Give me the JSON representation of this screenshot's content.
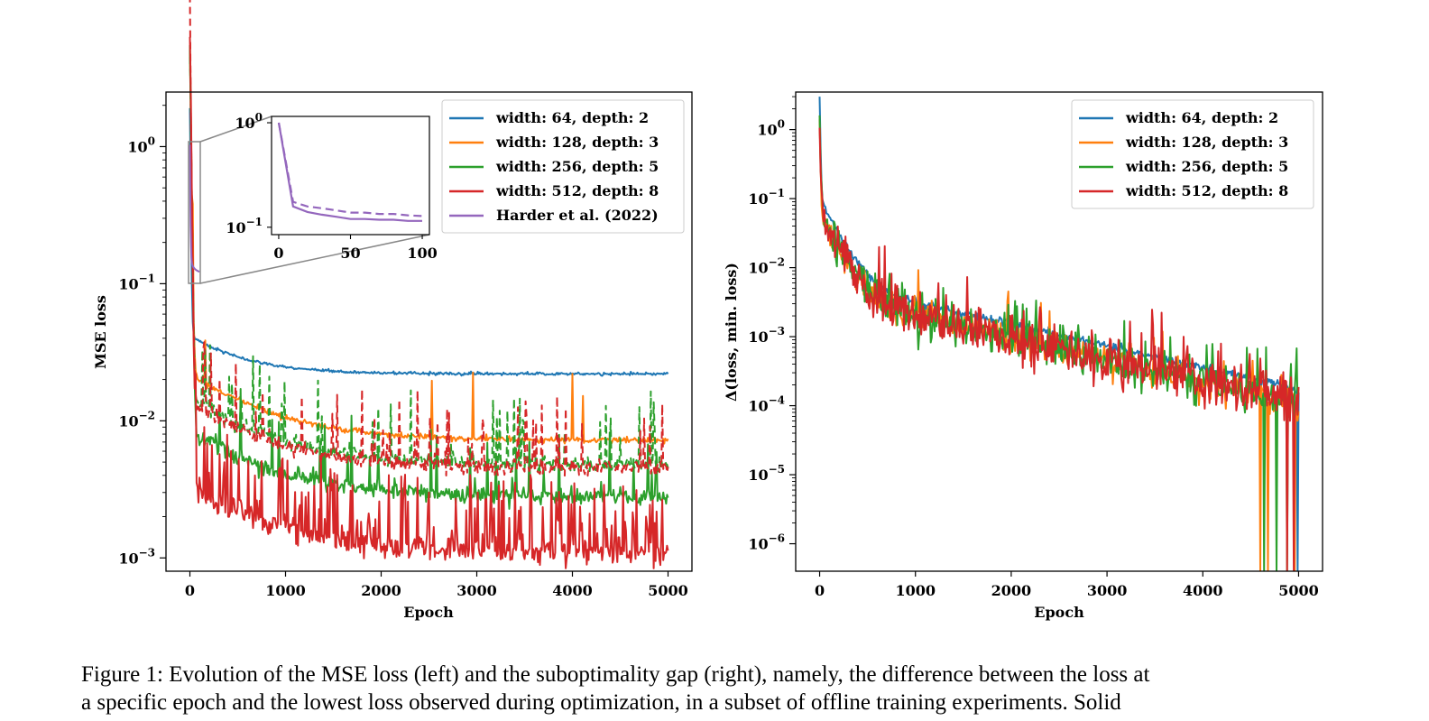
{
  "caption": {
    "line1": "Figure 1: Evolution of the MSE loss (left) and the suboptimality gap (right), namely, the difference between the loss at",
    "line2": "a specific epoch and the lowest loss observed during optimization, in a subset of offline training experiments. Solid"
  },
  "colors": {
    "blue": "#1f77b4",
    "orange": "#ff7f0e",
    "green": "#2ca02c",
    "red": "#d62728",
    "purple": "#9467bd"
  },
  "chart_data": [
    {
      "type": "line",
      "xlabel": "Epoch",
      "ylabel": "MSE loss",
      "xlim": [
        -250,
        5250
      ],
      "ylim": [
        0.0008,
        2.5
      ],
      "yscale": "log",
      "xticks": [
        "0",
        "1000",
        "2000",
        "3000",
        "4000",
        "5000"
      ],
      "yticks": [
        {
          "base": "10",
          "exp": "0"
        },
        {
          "base": "10",
          "exp": "−1"
        },
        {
          "base": "10",
          "exp": "−2"
        },
        {
          "base": "10",
          "exp": "−3"
        }
      ],
      "legend_position": "top-right",
      "series": [
        {
          "name": "width: 64, depth: 2",
          "color": "blue",
          "style": "solid",
          "start": 1.8,
          "end": 0.022,
          "noise": 0.02,
          "spikes": 0
        },
        {
          "name": "width: 128, depth: 3",
          "color": "orange",
          "style": "solid",
          "start": 1.8,
          "end": 0.0072,
          "noise": 0.04,
          "spikes": 0.02
        },
        {
          "name": "",
          "color": "green",
          "style": "dashed",
          "start": 1.8,
          "end": 0.0048,
          "noise": 0.1,
          "spikes": 0.08
        },
        {
          "name": "width: 256, depth: 5",
          "color": "green",
          "style": "solid",
          "start": 1.8,
          "end": 0.0028,
          "noise": 0.12,
          "spikes": 0.08
        },
        {
          "name": "",
          "color": "red",
          "style": "dashed",
          "start": 1.8,
          "end": 0.0045,
          "noise": 0.1,
          "spikes": 0.1
        },
        {
          "name": "width: 512, depth: 8",
          "color": "red",
          "style": "solid",
          "start": 1.9,
          "end": 0.0011,
          "noise": 0.18,
          "spikes": 0.25
        },
        {
          "name": "Harder et al. (2022)",
          "color": "purple",
          "style": "solid",
          "start": 1.0,
          "end": 0.12,
          "noise": 0.0,
          "spikes": 0
        }
      ],
      "inset": {
        "xticks": [
          "0",
          "50",
          "100"
        ],
        "yticks": [
          {
            "base": "10",
            "exp": "0"
          },
          {
            "base": "10",
            "exp": "−1"
          }
        ],
        "xlim": [
          -5,
          105
        ],
        "ylim": [
          0.085,
          1.15
        ],
        "series": [
          {
            "style": "dashed",
            "color": "purple",
            "x": [
              0,
              10,
              20,
              30,
              40,
              50,
              60,
              70,
              80,
              90,
              100
            ],
            "y": [
              1.0,
              0.175,
              0.158,
              0.152,
              0.145,
              0.138,
              0.138,
              0.134,
              0.134,
              0.13,
              0.128
            ]
          },
          {
            "style": "solid",
            "color": "purple",
            "x": [
              0,
              10,
              20,
              30,
              40,
              50,
              60,
              70,
              80,
              90,
              100
            ],
            "y": [
              1.0,
              0.158,
              0.14,
              0.132,
              0.126,
              0.12,
              0.12,
              0.118,
              0.118,
              0.115,
              0.115
            ]
          }
        ]
      }
    },
    {
      "type": "line",
      "xlabel": "Epoch",
      "ylabel": "Δ(loss, min. loss)",
      "xlim": [
        -250,
        5250
      ],
      "ylim": [
        4e-07,
        3.5
      ],
      "yscale": "log",
      "xticks": [
        "0",
        "1000",
        "2000",
        "3000",
        "4000",
        "5000"
      ],
      "yticks": [
        {
          "base": "10",
          "exp": "0"
        },
        {
          "base": "10",
          "exp": "−1"
        },
        {
          "base": "10",
          "exp": "−2"
        },
        {
          "base": "10",
          "exp": "−3"
        },
        {
          "base": "10",
          "exp": "−4"
        },
        {
          "base": "10",
          "exp": "−5"
        },
        {
          "base": "10",
          "exp": "−6"
        }
      ],
      "legend_position": "top-right",
      "series": [
        {
          "name": "width: 64, depth: 2",
          "color": "blue"
        },
        {
          "name": "width: 128, depth: 3",
          "color": "orange"
        },
        {
          "name": "width: 256, depth: 5",
          "color": "green"
        },
        {
          "name": "width: 512, depth: 8",
          "color": "red"
        }
      ]
    }
  ]
}
